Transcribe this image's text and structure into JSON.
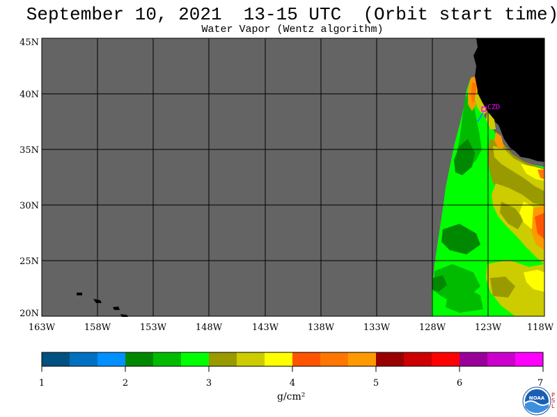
{
  "header": {
    "title": "September 10, 2021  13-15 UTC  (Orbit start time)",
    "subtitle": "Water Vapor (Wentz algorithm)"
  },
  "map": {
    "lat_labels": [
      "45N",
      "40N",
      "35N",
      "30N",
      "25N",
      "20N"
    ],
    "lon_labels": [
      "163W",
      "158W",
      "153W",
      "148W",
      "143W",
      "138W",
      "133W",
      "128W",
      "123W",
      "118W"
    ],
    "station_label": "CZD",
    "colors": {
      "no_data": "#646464",
      "land": "#000000",
      "grid": "#000000",
      "station": "#ff00ff"
    }
  },
  "colorbar": {
    "tick_labels": [
      "1",
      "2",
      "3",
      "4",
      "5",
      "6",
      "7"
    ],
    "units": "g/cm²",
    "colors": [
      "#005080",
      "#0070c0",
      "#0090ff",
      "#008800",
      "#00bb00",
      "#00ff00",
      "#999900",
      "#cccc00",
      "#ffff00",
      "#ff5500",
      "#ff7700",
      "#ff9900",
      "#990000",
      "#cc0000",
      "#ff0000",
      "#990099",
      "#cc00cc",
      "#ff00ff"
    ]
  },
  "logo": {
    "text": "NOAA",
    "side_letters": [
      "P",
      "S",
      "L"
    ]
  }
}
